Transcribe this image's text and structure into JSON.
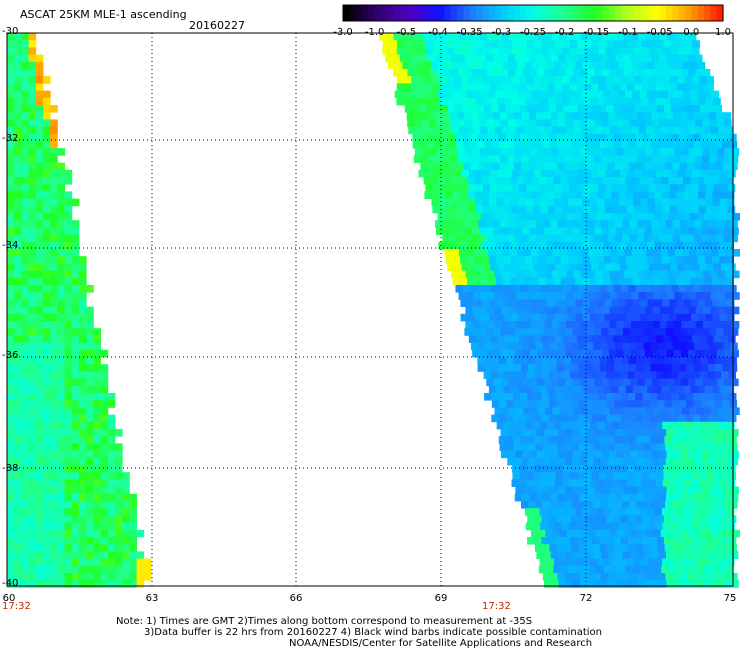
{
  "header": {
    "title": "ASCAT 25KM MLE-1 ascending",
    "date": "20160227"
  },
  "colorbar": {
    "labels": [
      "-3.0",
      "-1.0",
      "-0.5",
      "-0.4",
      "-0.35",
      "-0.3",
      "-0.25",
      "-0.2",
      "-0.15",
      "-0.1",
      "-0.05",
      "0.0",
      "1.0"
    ],
    "colors": [
      "#000000",
      "#300070",
      "#5000c0",
      "#1010ff",
      "#1e78ff",
      "#00c8ff",
      "#00ffe8",
      "#20ff90",
      "#20ff20",
      "#b0ff20",
      "#ffff00",
      "#ffa000",
      "#ff2000"
    ]
  },
  "map": {
    "y_axis_labels": [
      "-30",
      "-32",
      "-34",
      "-36",
      "-38",
      "-40"
    ],
    "x_axis_labels": [
      "60",
      "63",
      "66",
      "69",
      "72",
      "75"
    ],
    "pass_times": [
      "17:32",
      "17:32"
    ]
  },
  "footer": {
    "note_line1": "Note: 1) Times are GMT 2)Times along bottom correspond to measurement at -35S",
    "note_line2": "3)Data buffer is 22 hrs from 20160227 4) Black wind barbs indicate possible contamination",
    "note_line3": "NOAA/NESDIS/Center for Satellite Applications and Research"
  }
}
